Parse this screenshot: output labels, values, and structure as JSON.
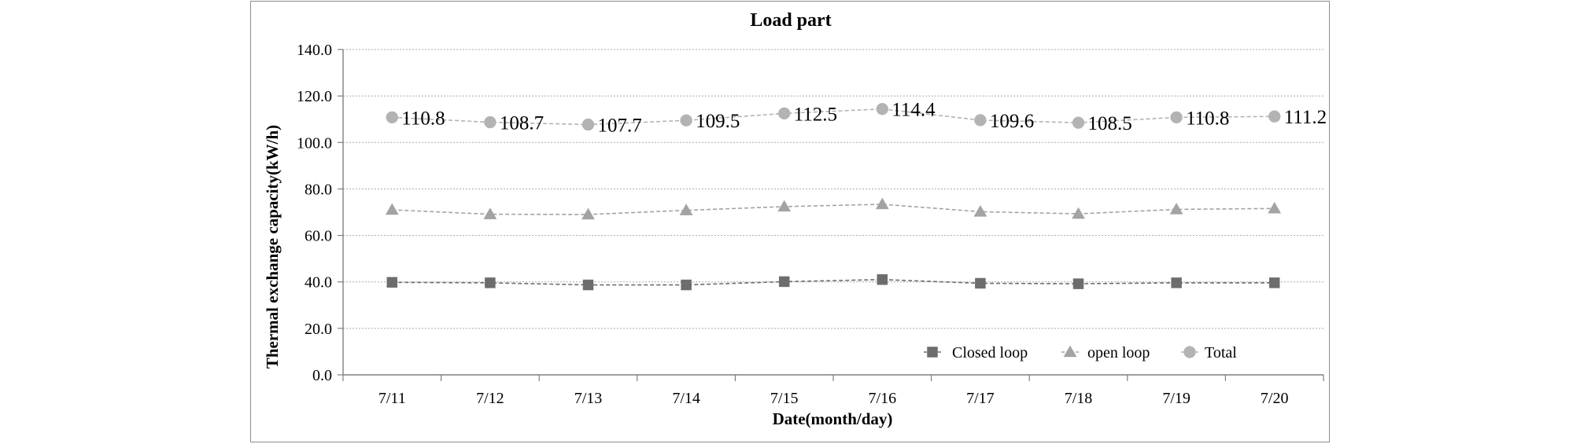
{
  "chart_data": {
    "type": "line",
    "title": "Load part",
    "xlabel": "Date(month/day)",
    "ylabel": "Thermal exchange capacity(kW/h)",
    "categories": [
      "7/11",
      "7/12",
      "7/13",
      "7/14",
      "7/15",
      "7/16",
      "7/17",
      "7/18",
      "7/19",
      "7/20"
    ],
    "ylim": [
      0,
      140
    ],
    "yticks": [
      "0.0",
      "20.0",
      "40.0",
      "60.0",
      "80.0",
      "100.0",
      "120.0",
      "140.0"
    ],
    "grid": true,
    "legend_position": "bottom-right",
    "series": [
      {
        "name": "Closed loop",
        "marker": "square",
        "color": "#6d6d6d",
        "values": [
          39.8,
          39.6,
          38.7,
          38.7,
          40.1,
          41.0,
          39.4,
          39.2,
          39.6,
          39.6
        ]
      },
      {
        "name": "open loop",
        "marker": "triangle",
        "color": "#a3a3a3",
        "values": [
          71.0,
          69.1,
          69.0,
          70.8,
          72.4,
          73.4,
          70.2,
          69.3,
          71.2,
          71.6
        ]
      },
      {
        "name": "Total",
        "marker": "circle",
        "color": "#b3b3b3",
        "values": [
          110.8,
          108.7,
          107.7,
          109.5,
          112.5,
          114.4,
          109.6,
          108.5,
          110.8,
          111.2
        ],
        "labels": [
          "110.8",
          "108.7",
          "107.7",
          "109.5",
          "112.5",
          "114.4",
          "109.6",
          "108.5",
          "110.8",
          "111.2"
        ]
      }
    ]
  }
}
